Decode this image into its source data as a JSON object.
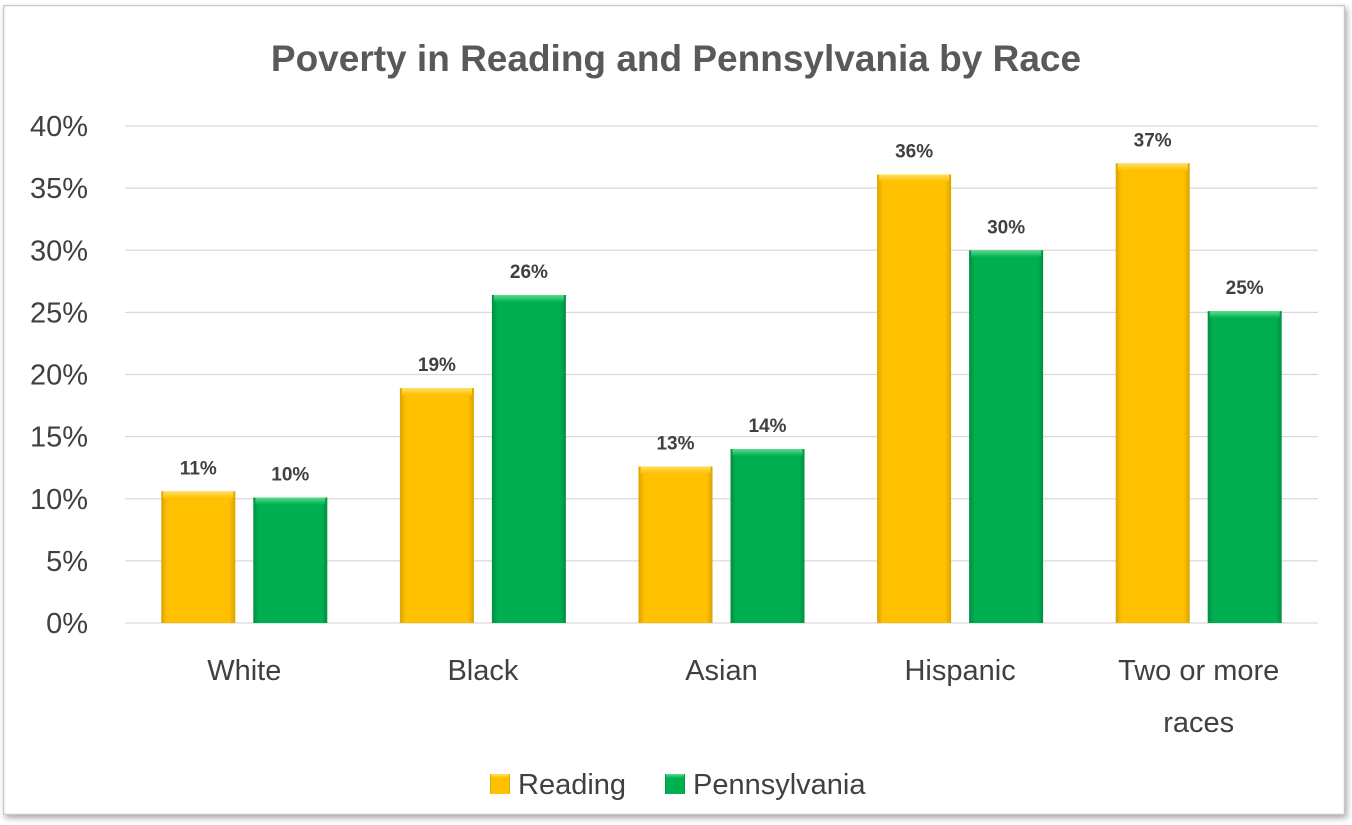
{
  "chart_data": {
    "type": "bar",
    "title": "Poverty in Reading and Pennsylvania by Race",
    "xlabel": "",
    "ylabel": "",
    "categories": [
      "White",
      "Black",
      "Asian",
      "Hispanic",
      "Two or more races"
    ],
    "category_lines": [
      [
        "White"
      ],
      [
        "Black"
      ],
      [
        "Asian"
      ],
      [
        "Hispanic"
      ],
      [
        "Two or more",
        "races"
      ]
    ],
    "series": [
      {
        "name": "Reading",
        "color": "#FFC000",
        "values": [
          10.6,
          18.9,
          12.6,
          36.1,
          37.0
        ],
        "labels": [
          "11%",
          "19%",
          "13%",
          "36%",
          "37%"
        ]
      },
      {
        "name": "Pennsylvania",
        "color": "#00B050",
        "values": [
          10.1,
          26.4,
          14.0,
          30.0,
          25.1
        ],
        "labels": [
          "10%",
          "26%",
          "14%",
          "30%",
          "25%"
        ]
      }
    ],
    "ylim": [
      0,
      40
    ],
    "yticks": [
      0,
      5,
      10,
      15,
      20,
      25,
      30,
      35,
      40
    ],
    "ytick_labels": [
      "0%",
      "5%",
      "10%",
      "15%",
      "20%",
      "25%",
      "30%",
      "35%",
      "40%"
    ],
    "grid": true,
    "legend_position": "bottom"
  }
}
